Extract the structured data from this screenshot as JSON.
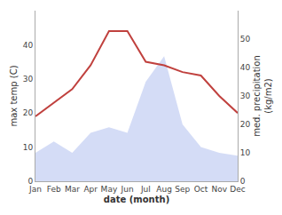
{
  "chart_data": {
    "type": "line",
    "categories": [
      "Jan",
      "Feb",
      "Mar",
      "Apr",
      "May",
      "Jun",
      "Jul",
      "Aug",
      "Sep",
      "Oct",
      "Nov",
      "Dec"
    ],
    "series": [
      {
        "type": "area",
        "axis": "y2",
        "color": "#b8c4f0",
        "values": [
          10,
          14,
          10,
          17,
          19,
          17,
          35,
          44,
          20,
          12,
          10,
          9
        ]
      },
      {
        "type": "line",
        "color": "#c0413e",
        "values": [
          19,
          23,
          27,
          34,
          44,
          44,
          35,
          34,
          32,
          31,
          25,
          20
        ]
      }
    ],
    "xlabel": "date (month)",
    "ylabel": "max temp (C)",
    "y2label": "med. precipitation\n(kg/m2)",
    "ylim": [
      0,
      50
    ],
    "yticks": [
      0,
      10,
      20,
      30,
      40
    ],
    "y2lim": [
      0,
      60
    ],
    "y2ticks": [
      0,
      10,
      20,
      30,
      40,
      50
    ],
    "grid": false
  }
}
